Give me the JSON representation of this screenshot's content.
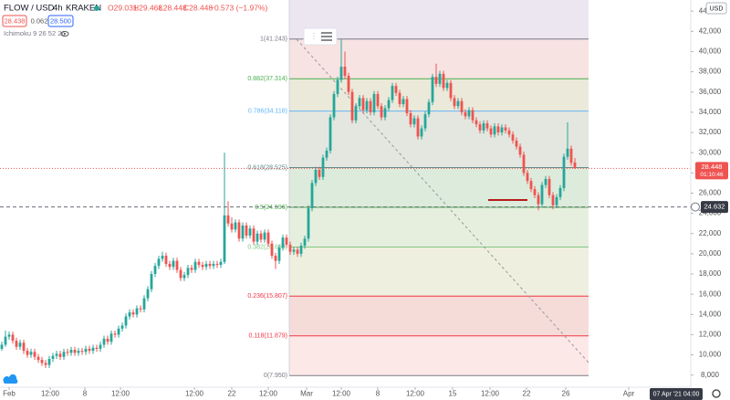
{
  "header": {
    "symbol": "FLOW / USD",
    "interval": "4h",
    "exchange": "KRAKEN",
    "ohlc": [
      "O29.031",
      "H29.468",
      "L28.448",
      "C28.448"
    ],
    "change": "−0.573 (−1.97%)",
    "bid": "28.438",
    "spread": "0.062",
    "ask": "28.500",
    "indicator": "Ichimoku 9 26 52 26"
  },
  "chart_data": {
    "type": "candlestick",
    "currency": "USD",
    "up_color": "#26a69a",
    "down_color": "#ef5350",
    "candles": [
      [
        10.6,
        11.3,
        10.4,
        11.0
      ],
      [
        11.0,
        12.4,
        10.8,
        11.8
      ],
      [
        11.8,
        12.3,
        11.5,
        12.0
      ],
      [
        12.0,
        12.3,
        11.1,
        11.4
      ],
      [
        11.4,
        11.7,
        10.5,
        10.8
      ],
      [
        10.8,
        11.5,
        10.5,
        11.2
      ],
      [
        11.2,
        11.5,
        10.1,
        10.4
      ],
      [
        10.4,
        10.7,
        9.7,
        10.0
      ],
      [
        10.0,
        10.6,
        9.7,
        10.3
      ],
      [
        10.3,
        10.6,
        9.5,
        9.8
      ],
      [
        9.8,
        10.1,
        9.2,
        9.5
      ],
      [
        9.5,
        9.8,
        8.9,
        9.2
      ],
      [
        9.2,
        9.5,
        8.7,
        9.0
      ],
      [
        9.0,
        9.9,
        8.7,
        9.6
      ],
      [
        9.6,
        10.2,
        9.3,
        9.9
      ],
      [
        9.9,
        10.4,
        9.6,
        10.1
      ],
      [
        10.1,
        10.4,
        9.5,
        9.8
      ],
      [
        9.8,
        10.6,
        9.5,
        10.3
      ],
      [
        10.3,
        10.6,
        9.9,
        10.2
      ],
      [
        10.2,
        10.8,
        9.9,
        10.5
      ],
      [
        10.5,
        10.8,
        9.9,
        10.2
      ],
      [
        10.2,
        10.7,
        9.9,
        10.4
      ],
      [
        10.4,
        10.7,
        10.0,
        10.3
      ],
      [
        10.3,
        10.9,
        10.0,
        10.6
      ],
      [
        10.6,
        10.9,
        10.1,
        10.4
      ],
      [
        10.4,
        11.0,
        10.1,
        10.7
      ],
      [
        10.7,
        11.0,
        10.3,
        10.6
      ],
      [
        10.6,
        11.3,
        10.3,
        11.0
      ],
      [
        11.0,
        11.9,
        10.7,
        11.6
      ],
      [
        11.6,
        11.9,
        11.0,
        11.3
      ],
      [
        11.3,
        12.4,
        11.0,
        12.1
      ],
      [
        12.1,
        12.4,
        11.7,
        12.0
      ],
      [
        12.0,
        12.9,
        11.7,
        12.6
      ],
      [
        12.6,
        13.2,
        12.3,
        12.9
      ],
      [
        12.9,
        14.1,
        12.6,
        13.8
      ],
      [
        13.8,
        14.5,
        13.5,
        14.2
      ],
      [
        14.2,
        14.5,
        13.7,
        14.0
      ],
      [
        14.0,
        14.9,
        13.7,
        14.6
      ],
      [
        14.6,
        14.9,
        14.2,
        14.5
      ],
      [
        14.5,
        15.9,
        14.2,
        15.6
      ],
      [
        15.6,
        16.8,
        15.3,
        16.5
      ],
      [
        16.5,
        18.3,
        16.2,
        18.0
      ],
      [
        18.0,
        19.1,
        17.7,
        18.8
      ],
      [
        18.8,
        19.8,
        18.5,
        19.5
      ],
      [
        19.5,
        20.2,
        19.2,
        19.8
      ],
      [
        19.8,
        20.1,
        18.7,
        19.0
      ],
      [
        19.0,
        19.3,
        18.4,
        18.7
      ],
      [
        18.7,
        19.6,
        18.4,
        19.3
      ],
      [
        19.3,
        19.6,
        18.1,
        18.4
      ],
      [
        18.4,
        18.7,
        17.3,
        17.6
      ],
      [
        17.6,
        18.2,
        17.3,
        17.9
      ],
      [
        17.9,
        18.9,
        17.6,
        18.6
      ],
      [
        18.6,
        18.9,
        18.1,
        18.4
      ],
      [
        18.4,
        19.5,
        18.1,
        19.2
      ],
      [
        19.2,
        19.5,
        18.6,
        18.9
      ],
      [
        18.9,
        19.2,
        18.4,
        18.7
      ],
      [
        18.7,
        19.3,
        18.4,
        19.0
      ],
      [
        19.0,
        19.3,
        18.5,
        18.8
      ],
      [
        18.8,
        19.3,
        18.5,
        19.0
      ],
      [
        19.0,
        19.3,
        18.6,
        18.9
      ],
      [
        18.9,
        19.5,
        18.6,
        19.2
      ],
      [
        19.2,
        30.0,
        19.0,
        23.8
      ],
      [
        23.8,
        25.2,
        22.7,
        23.0
      ],
      [
        23.0,
        23.6,
        22.1,
        22.4
      ],
      [
        22.4,
        23.4,
        22.1,
        23.1
      ],
      [
        23.1,
        23.4,
        21.2,
        21.5
      ],
      [
        21.5,
        23.1,
        21.2,
        22.8
      ],
      [
        22.8,
        23.1,
        21.5,
        21.8
      ],
      [
        21.8,
        22.8,
        21.5,
        22.5
      ],
      [
        22.5,
        22.8,
        20.9,
        21.2
      ],
      [
        21.2,
        22.3,
        20.9,
        22.0
      ],
      [
        22.0,
        22.3,
        21.1,
        21.4
      ],
      [
        21.4,
        22.4,
        21.1,
        22.1
      ],
      [
        22.1,
        22.4,
        20.7,
        21.0
      ],
      [
        21.0,
        21.3,
        19.5,
        19.8
      ],
      [
        19.8,
        20.1,
        18.5,
        19.3
      ],
      [
        19.3,
        20.9,
        19.0,
        20.6
      ],
      [
        20.6,
        21.9,
        20.3,
        21.6
      ],
      [
        21.6,
        21.9,
        20.6,
        20.9
      ],
      [
        20.9,
        21.2,
        19.9,
        20.2
      ],
      [
        20.2,
        20.7,
        19.9,
        20.4
      ],
      [
        20.4,
        20.7,
        19.7,
        20.0
      ],
      [
        20.0,
        21.1,
        19.7,
        20.8
      ],
      [
        20.8,
        21.8,
        20.5,
        21.5
      ],
      [
        21.5,
        24.8,
        21.2,
        24.5
      ],
      [
        24.5,
        27.3,
        24.2,
        27.0
      ],
      [
        27.0,
        28.6,
        26.7,
        28.3
      ],
      [
        28.3,
        28.6,
        27.3,
        27.6
      ],
      [
        27.6,
        29.8,
        27.3,
        29.5
      ],
      [
        29.5,
        30.5,
        29.2,
        30.2
      ],
      [
        30.2,
        33.8,
        29.9,
        33.5
      ],
      [
        33.5,
        36.1,
        33.2,
        35.8
      ],
      [
        35.8,
        37.5,
        35.5,
        37.2
      ],
      [
        37.2,
        41.2,
        36.9,
        38.5
      ],
      [
        38.5,
        40.0,
        37.3,
        37.6
      ],
      [
        37.6,
        37.9,
        35.7,
        36.0
      ],
      [
        36.0,
        36.3,
        32.9,
        33.2
      ],
      [
        33.2,
        34.9,
        32.9,
        34.6
      ],
      [
        34.6,
        35.7,
        34.3,
        35.4
      ],
      [
        35.4,
        35.7,
        33.9,
        34.2
      ],
      [
        34.2,
        35.4,
        33.9,
        35.1
      ],
      [
        35.1,
        35.4,
        33.7,
        34.0
      ],
      [
        34.0,
        36.1,
        33.7,
        35.8
      ],
      [
        35.8,
        36.1,
        34.3,
        34.6
      ],
      [
        34.6,
        34.9,
        33.2,
        33.5
      ],
      [
        33.5,
        34.7,
        33.2,
        34.4
      ],
      [
        34.4,
        35.5,
        34.1,
        35.2
      ],
      [
        35.2,
        36.9,
        34.9,
        36.6
      ],
      [
        36.6,
        36.9,
        35.6,
        35.9
      ],
      [
        35.9,
        36.2,
        34.5,
        34.8
      ],
      [
        34.8,
        35.6,
        34.5,
        35.3
      ],
      [
        35.3,
        35.6,
        33.6,
        33.9
      ],
      [
        33.9,
        34.2,
        32.5,
        32.8
      ],
      [
        32.8,
        33.7,
        32.5,
        33.4
      ],
      [
        33.4,
        33.7,
        31.3,
        31.6
      ],
      [
        31.6,
        32.7,
        31.3,
        32.4
      ],
      [
        32.4,
        34.1,
        32.1,
        33.8
      ],
      [
        33.8,
        35.3,
        33.5,
        35.0
      ],
      [
        35.0,
        37.8,
        34.7,
        37.5
      ],
      [
        37.5,
        38.8,
        36.5,
        36.8
      ],
      [
        36.8,
        38.1,
        36.5,
        37.8
      ],
      [
        37.8,
        38.1,
        36.1,
        36.4
      ],
      [
        36.4,
        37.2,
        36.1,
        36.9
      ],
      [
        36.9,
        37.2,
        35.1,
        35.4
      ],
      [
        35.4,
        35.7,
        34.3,
        34.6
      ],
      [
        34.6,
        35.4,
        34.3,
        35.1
      ],
      [
        35.1,
        35.4,
        33.7,
        34.0
      ],
      [
        34.0,
        34.3,
        33.3,
        33.6
      ],
      [
        33.6,
        34.5,
        33.3,
        34.2
      ],
      [
        34.2,
        34.5,
        32.9,
        33.2
      ],
      [
        33.2,
        33.5,
        32.5,
        32.8
      ],
      [
        32.8,
        33.1,
        31.9,
        32.2
      ],
      [
        32.2,
        33.2,
        31.9,
        32.9
      ],
      [
        32.9,
        33.2,
        32.1,
        32.4
      ],
      [
        32.4,
        32.7,
        31.5,
        31.8
      ],
      [
        31.8,
        32.9,
        31.5,
        32.6
      ],
      [
        32.6,
        32.9,
        31.7,
        32.0
      ],
      [
        32.0,
        32.8,
        31.7,
        32.5
      ],
      [
        32.5,
        32.8,
        31.9,
        32.2
      ],
      [
        32.2,
        32.5,
        31.5,
        31.8
      ],
      [
        31.8,
        32.1,
        30.9,
        31.2
      ],
      [
        31.2,
        31.5,
        30.3,
        30.6
      ],
      [
        30.6,
        30.9,
        29.5,
        29.8
      ],
      [
        29.8,
        30.1,
        27.7,
        28.0
      ],
      [
        28.0,
        28.3,
        26.9,
        27.2
      ],
      [
        27.2,
        27.5,
        26.1,
        26.4
      ],
      [
        26.4,
        26.7,
        25.5,
        25.8
      ],
      [
        25.8,
        26.1,
        24.3,
        24.9
      ],
      [
        24.9,
        27.1,
        24.6,
        26.8
      ],
      [
        26.8,
        27.7,
        26.5,
        27.4
      ],
      [
        27.4,
        27.7,
        25.5,
        25.8
      ],
      [
        25.8,
        26.1,
        24.4,
        24.8
      ],
      [
        24.8,
        25.9,
        24.5,
        25.6
      ],
      [
        25.6,
        26.8,
        25.3,
        26.5
      ],
      [
        26.5,
        29.9,
        26.2,
        29.6
      ],
      [
        29.6,
        33.0,
        29.3,
        30.4
      ],
      [
        30.4,
        30.7,
        28.7,
        29.0
      ],
      [
        29.031,
        29.468,
        28.448,
        28.448
      ]
    ],
    "xlim": [
      -0.5,
      188.25
    ],
    "xticks": [
      {
        "value": 2,
        "label": "Feb"
      },
      {
        "value": 13.25,
        "label": "12:00"
      },
      {
        "value": 22.75,
        "label": "8"
      },
      {
        "value": 32.5,
        "label": "12:00"
      },
      {
        "value": 52.75,
        "label": "12:00"
      },
      {
        "value": 63,
        "label": "22"
      },
      {
        "value": 73,
        "label": "12:00"
      },
      {
        "value": 83.5,
        "label": "Mar"
      },
      {
        "value": 93,
        "label": "12:00"
      },
      {
        "value": 103,
        "label": "8"
      },
      {
        "value": 113.25,
        "label": "12:00"
      },
      {
        "value": 123.5,
        "label": "15"
      },
      {
        "value": 133.75,
        "label": "12:00"
      },
      {
        "value": 143.75,
        "label": "22"
      },
      {
        "value": 154.5,
        "label": "26"
      },
      {
        "value": 171.75,
        "label": "Apr"
      }
    ],
    "ylim": [
      6.8,
      45.1
    ],
    "yticks": [
      {
        "value": 8,
        "label": "8,000"
      },
      {
        "value": 10,
        "label": "10,000"
      },
      {
        "value": 12,
        "label": "12,000"
      },
      {
        "value": 14,
        "label": "14,000"
      },
      {
        "value": 16,
        "label": "16,000"
      },
      {
        "value": 18,
        "label": "18,000"
      },
      {
        "value": 20,
        "label": "20,000"
      },
      {
        "value": 22,
        "label": "22,000"
      },
      {
        "value": 24,
        "label": "24,000"
      },
      {
        "value": 26,
        "label": "26,000"
      },
      {
        "value": 28,
        "label": "28,000"
      },
      {
        "value": 30,
        "label": "30,000"
      },
      {
        "value": 32,
        "label": "32,000"
      },
      {
        "value": 34,
        "label": "34,000"
      },
      {
        "value": 36,
        "label": "36,000"
      },
      {
        "value": 38,
        "label": "38,000"
      },
      {
        "value": 40,
        "label": "40,000"
      },
      {
        "value": 42,
        "label": "42,000"
      },
      {
        "value": 44,
        "label": "44,000"
      }
    ],
    "grid": false,
    "fib": {
      "top_fill": "#ece6f1",
      "levels": [
        {
          "value": 41.243,
          "label": "1(41.243)",
          "color": "#787b86",
          "fill": "#f7e3e2"
        },
        {
          "value": 37.314,
          "label": "0.882(37.314)",
          "color": "#4caf50",
          "fill": "#ebe9da"
        },
        {
          "value": 34.118,
          "label": "0.786(34.118)",
          "color": "#64b5f6",
          "fill": "#e3e7df"
        },
        {
          "value": 28.525,
          "label": "0.618(28.525)",
          "color": "#5f8b8b",
          "fill": "#dcebdb"
        },
        {
          "value": 24.596,
          "label": "0.5(24.596)",
          "color": "#4caf50",
          "fill": "#e6efdd"
        },
        {
          "value": 20.668,
          "label": "0.382(20.668)",
          "color": "#81c784",
          "fill": "#efefdf"
        },
        {
          "value": 15.807,
          "label": "0.236(15.807)",
          "color": "#f23645",
          "fill": "#f5dcd8"
        },
        {
          "value": 11.879,
          "label": "0.118(11.879)",
          "color": "#f23645",
          "fill": "#fde8e8"
        },
        {
          "value": 7.95,
          "label": "0(7.950)",
          "color": "#787b86",
          "fill": "none"
        }
      ]
    },
    "last_price": {
      "value": 28.448,
      "label": "28.448",
      "countdown": "01:10:46"
    },
    "crosshair": {
      "value": 24.632,
      "label": "24.632",
      "date": "07 Apr '21 04:00"
    }
  }
}
